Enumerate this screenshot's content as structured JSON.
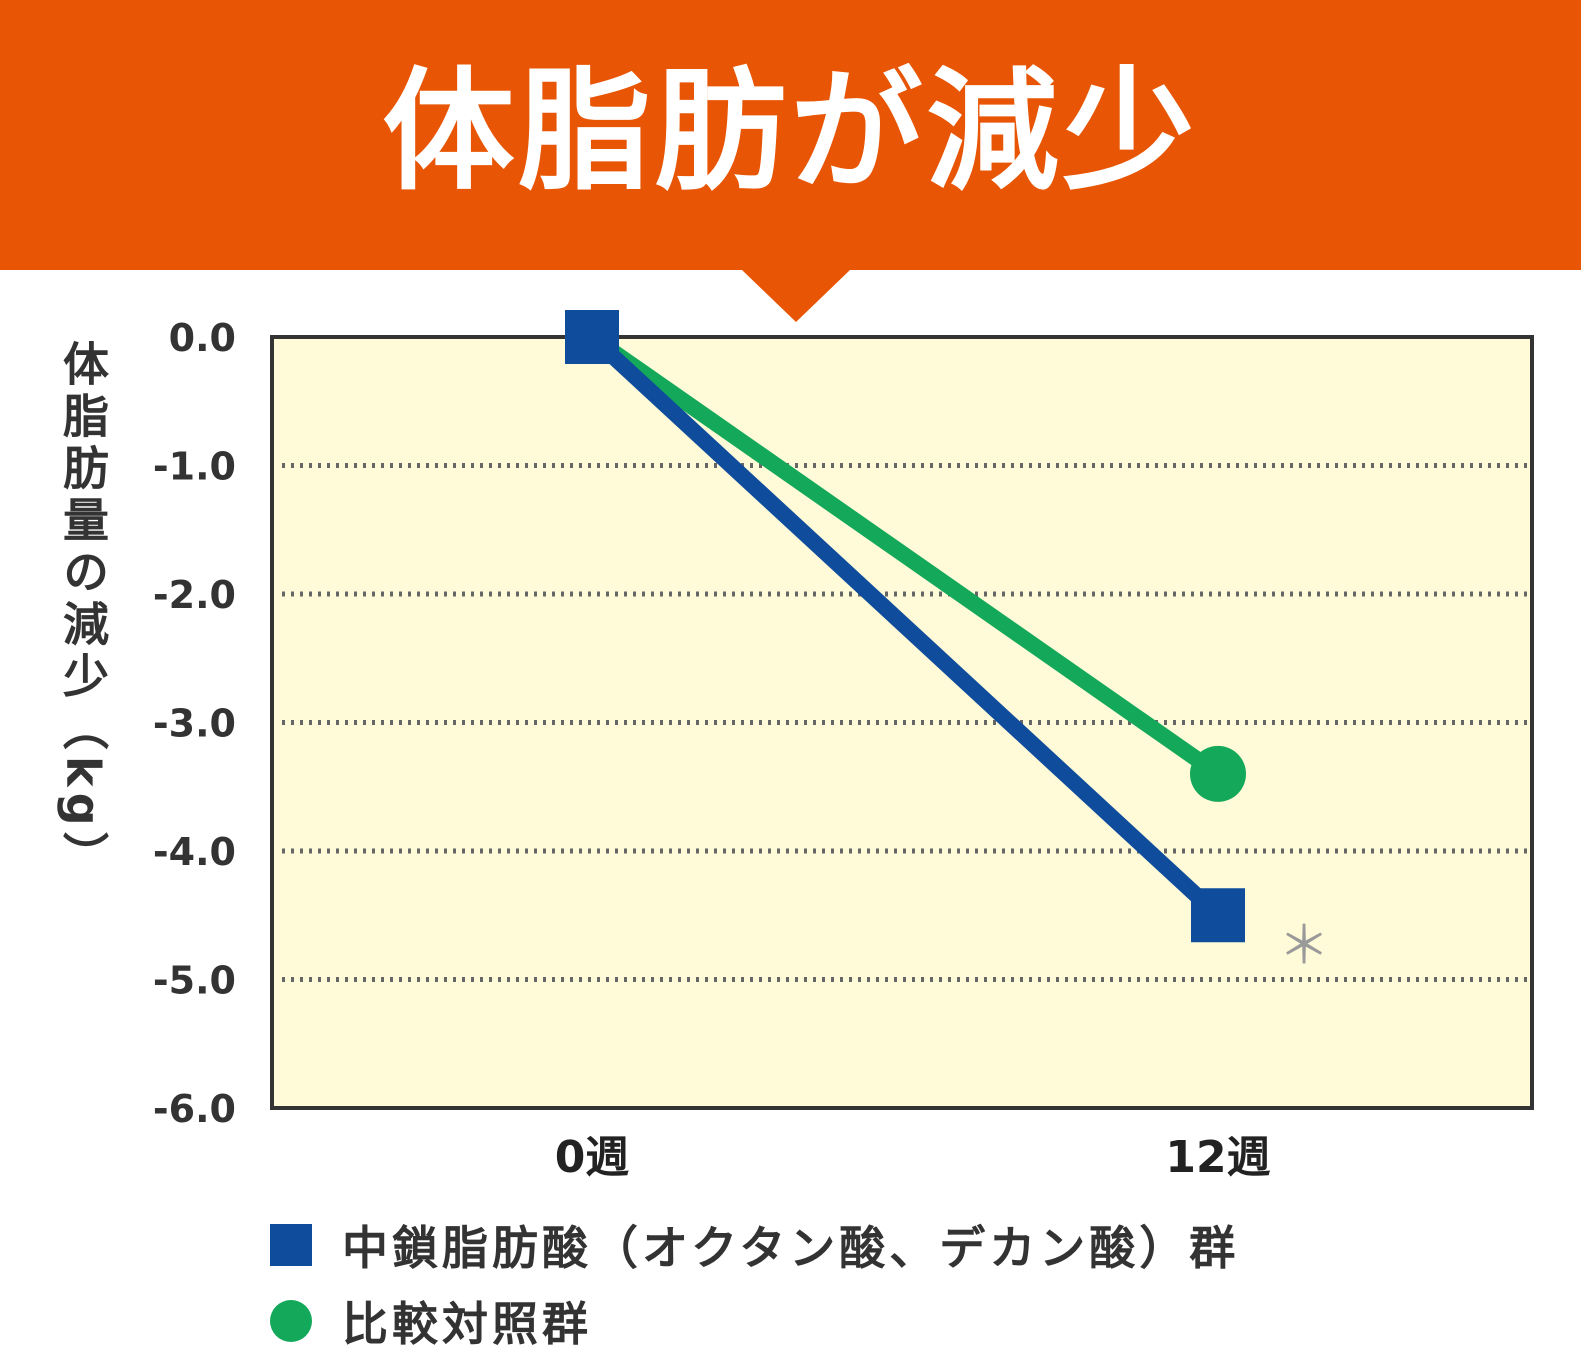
{
  "header": {
    "title": "体脂肪が減少"
  },
  "colors": {
    "banner": "#e85504",
    "plot_background": "#fffbd9",
    "series_mcfa": "#0f4d9c",
    "series_control": "#14a85a",
    "gridline": "#666666",
    "annotation": "#9a9a9a"
  },
  "chart_data": {
    "type": "line",
    "title": "",
    "xlabel": "",
    "ylabel": "体脂肪量の減少（kg）",
    "categories": [
      "0週",
      "12週"
    ],
    "ylim": [
      -6.0,
      0.0
    ],
    "yticks": [
      "0.0",
      "-1.0",
      "-2.0",
      "-3.0",
      "-4.0",
      "-5.0",
      "-6.0"
    ],
    "grid": "horizontal dotted",
    "series": [
      {
        "name": "中鎖脂肪酸（オクタン酸、デカン酸）群",
        "marker": "square",
        "values": [
          0.0,
          -4.5
        ]
      },
      {
        "name": "比較対照群",
        "marker": "circle",
        "values": [
          0.0,
          -3.4
        ]
      }
    ],
    "annotations": [
      {
        "text": "＊",
        "series": 0,
        "category": "12週"
      }
    ],
    "legend_position": "bottom-left"
  }
}
